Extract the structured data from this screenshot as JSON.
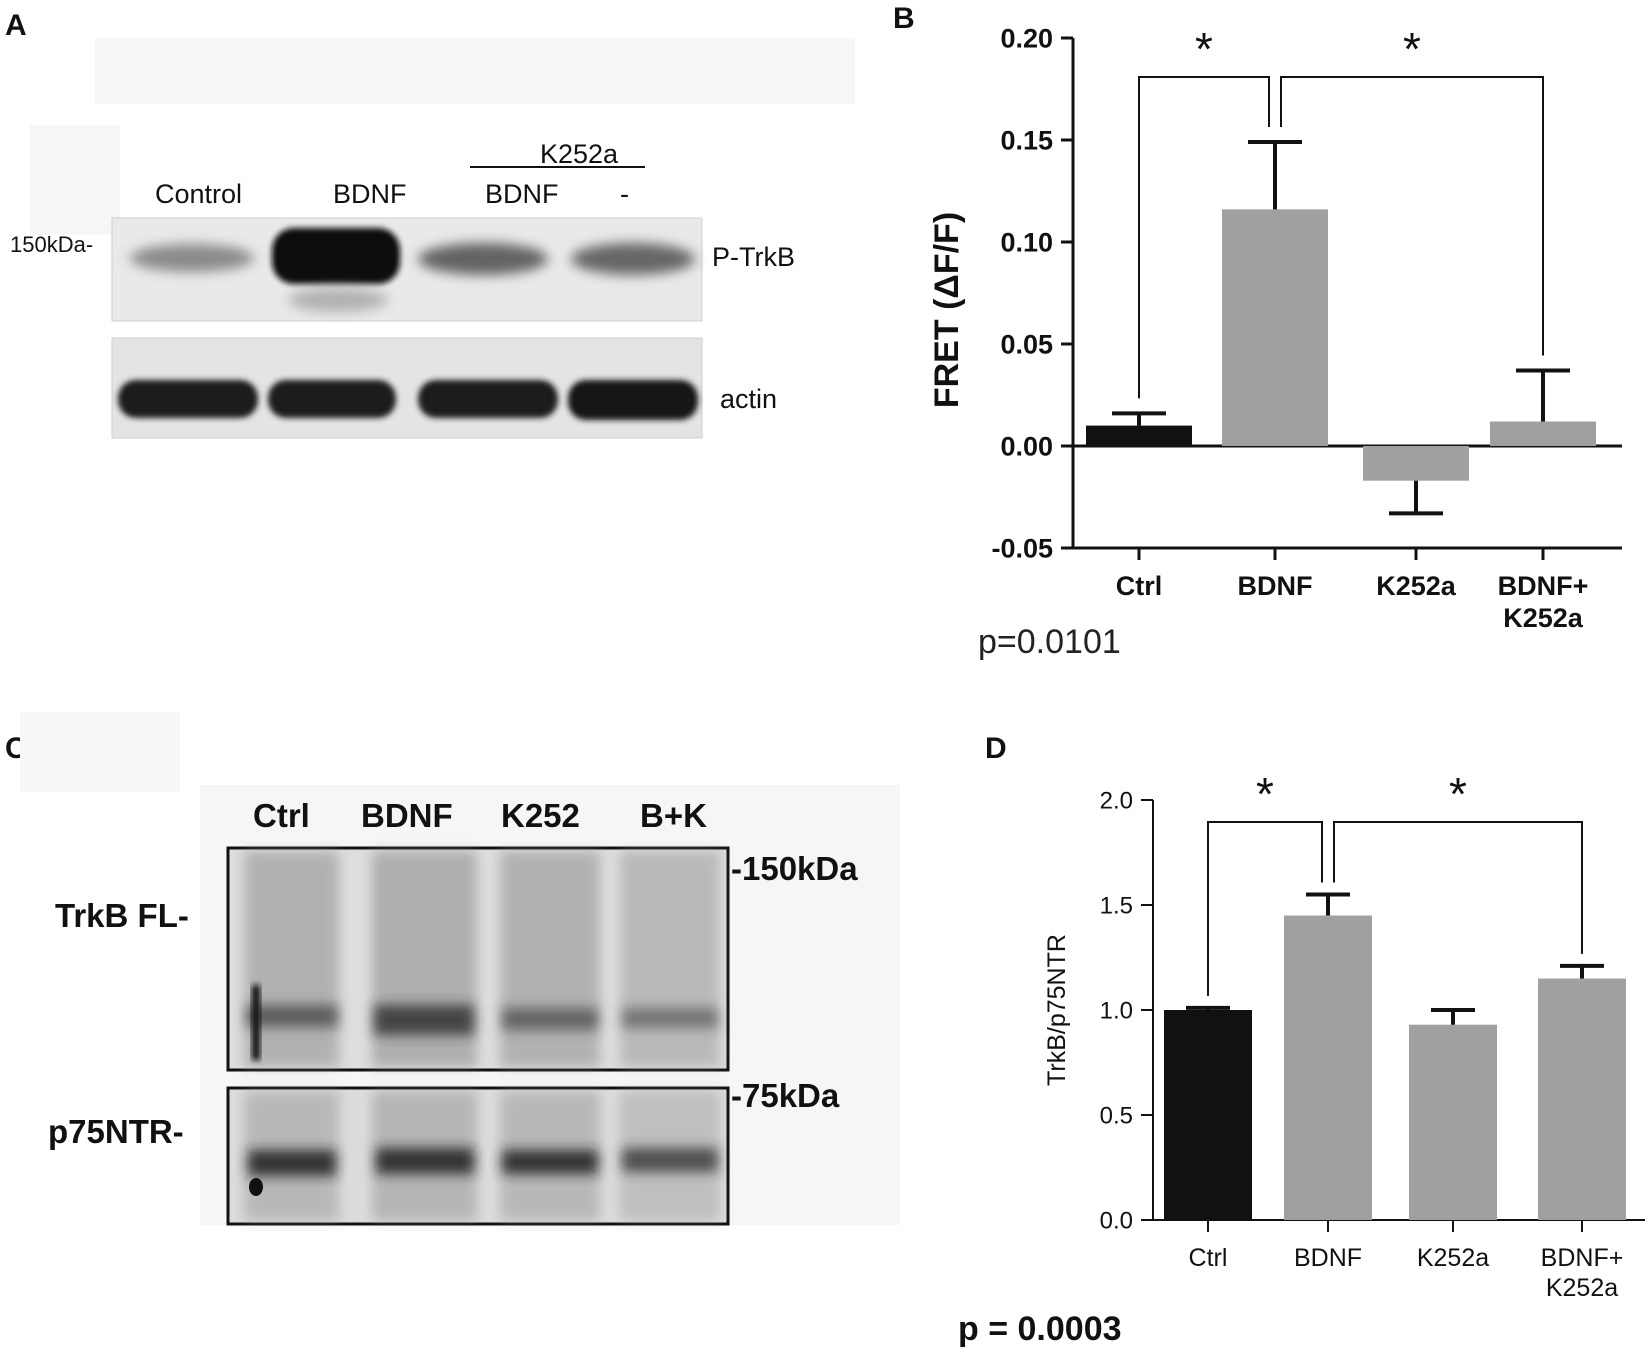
{
  "panels": {
    "A": {
      "letter": "A",
      "treatment_group_label": "K252a",
      "lanes": [
        "Control",
        "BDNF",
        "BDNF",
        "-"
      ],
      "marker": "150kDa-",
      "bands": [
        "P-TrkB",
        "actin"
      ]
    },
    "B": {
      "letter": "B",
      "p_value": "p=0.0101"
    },
    "C": {
      "letter": "C",
      "lanes": [
        "Ctrl",
        "BDNF",
        "K252",
        "B+K"
      ],
      "row_labels": [
        "TrkB FL-",
        "p75NTR-"
      ],
      "markers": [
        "-150kDa",
        "-75kDa"
      ]
    },
    "D": {
      "letter": "D",
      "p_value": "p = 0.0003"
    }
  },
  "chart_data": [
    {
      "type": "bar",
      "panel": "B",
      "categories": [
        [
          "Ctrl"
        ],
        [
          "BDNF"
        ],
        [
          "K252a"
        ],
        [
          "BDNF+",
          "K252a"
        ]
      ],
      "values": [
        0.01,
        0.116,
        -0.017,
        0.012
      ],
      "errors": [
        0.006,
        0.033,
        0.016,
        0.025
      ],
      "bar_colors": [
        "#111111",
        "#a0a0a0",
        "#a0a0a0",
        "#a0a0a0"
      ],
      "ylabel": "FRET (ΔF/F)",
      "ylim": [
        -0.05,
        0.2
      ],
      "yticks": [
        -0.05,
        0.0,
        0.05,
        0.1,
        0.15,
        0.2
      ],
      "ytick_labels": [
        "-0.05",
        "0.00",
        "0.05",
        "0.10",
        "0.15",
        "0.20"
      ],
      "significance": [
        {
          "from": 0,
          "to": 1,
          "label": "*"
        },
        {
          "from": 1,
          "to": 3,
          "label": "*"
        }
      ],
      "grid": false
    },
    {
      "type": "bar",
      "panel": "D",
      "categories": [
        [
          "Ctrl"
        ],
        [
          "BDNF"
        ],
        [
          "K252a"
        ],
        [
          "BDNF+",
          "K252a"
        ]
      ],
      "values": [
        1.0,
        1.45,
        0.93,
        1.15
      ],
      "errors": [
        0.01,
        0.1,
        0.07,
        0.06
      ],
      "bar_colors": [
        "#111111",
        "#a0a0a0",
        "#a0a0a0",
        "#a0a0a0"
      ],
      "ylabel": "TrkB/p75NTR",
      "ylim": [
        0.0,
        2.0
      ],
      "yticks": [
        0.0,
        0.5,
        1.0,
        1.5,
        2.0
      ],
      "ytick_labels": [
        "0.0",
        "0.5",
        "1.0",
        "1.5",
        "2.0"
      ],
      "significance": [
        {
          "from": 0,
          "to": 1,
          "label": "*"
        },
        {
          "from": 1,
          "to": 3,
          "label": "*"
        }
      ],
      "grid": false
    }
  ]
}
